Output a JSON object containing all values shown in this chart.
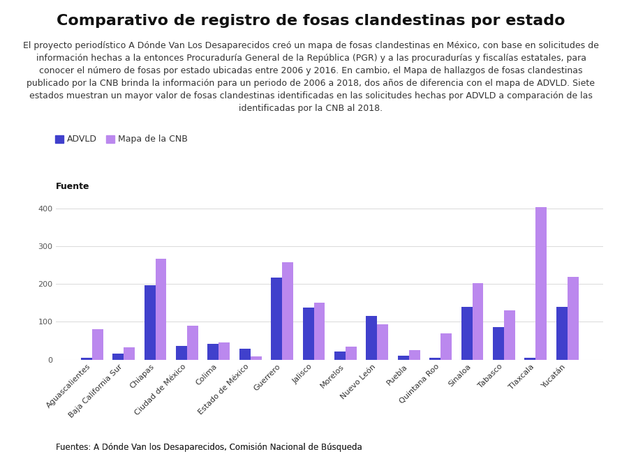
{
  "title": "Comparativo de registro de fosas clandestinas por estado",
  "subtitle": "El proyecto periodístico A Dónde Van Los Desaparecidos creó un mapa de fosas clandestinas en México, con base en solicitudes de\ninformación hechas a la entonces Procuraduría General de la República (PGR) y a las procuradurías y fiscalías estatales, para\nconocer el número de fosas por estado ubicadas entre 2006 y 2016. En cambio, el Mapa de hallazgos de fosas clandestinas\npublicado por la CNB brinda la información para un periodo de 2006 a 2018, dos años de diferencia con el mapa de ADVLD. Siete\nestados muestran un mayor valor de fosas clandestinas identificadas en las solicitudes hechas por ADVLD a comparación de las\nidentificadas por la CNB al 2018.",
  "fuente_label": "Fuente",
  "legend_advld": "ADVLD",
  "legend_cnb": "Mapa de la CNB",
  "footer": "Fuentes: A Dónde Van los Desaparecidos, Comisión Nacional de Búsqueda",
  "categories": [
    "Aguascalientes",
    "Baja California Sur",
    "Chiapas",
    "Ciudad de México",
    "Colima",
    "Estado de México",
    "Guerrero",
    "Jalisco",
    "Morelos",
    "Nuevo León",
    "Puebla",
    "Quintana Roo",
    "Sinaloa",
    "Tabasco",
    "Tlaxcala",
    "Yucatán"
  ],
  "advld": [
    5,
    15,
    197,
    37,
    42,
    28,
    217,
    137,
    22,
    115,
    10,
    4,
    140,
    87,
    5,
    140
  ],
  "cnb": [
    80,
    33,
    267,
    90,
    45,
    8,
    259,
    150,
    35,
    93,
    26,
    69,
    203,
    130,
    405,
    220
  ],
  "color_advld": "#4040cc",
  "color_cnb": "#bb88ee",
  "background_color": "#ffffff",
  "ylim": [
    0,
    440
  ],
  "yticks": [
    0,
    100,
    200,
    300,
    400
  ],
  "grid_color": "#dddddd",
  "title_fontsize": 16,
  "subtitle_fontsize": 9,
  "tick_fontsize": 8,
  "bar_width": 0.35
}
